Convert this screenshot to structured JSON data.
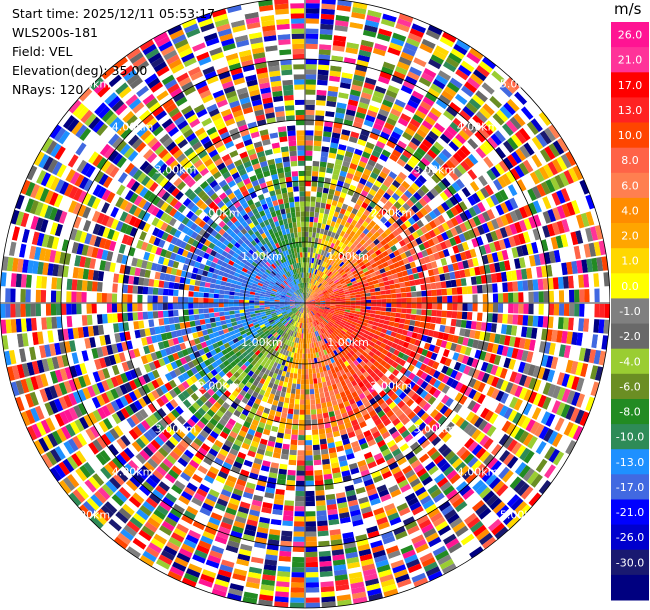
{
  "info": {
    "start_time": "Start time: 2025/12/11 05:53:17",
    "instrument": "WLS200s-181",
    "field": "Field: VEL",
    "elevation": "Elevation(deg): 35.00",
    "nrays": "NRays: 120"
  },
  "chart_data": {
    "type": "heatmap",
    "subtype": "polar-ppi",
    "field": "VEL",
    "nrays": 120,
    "max_range_km": 5.0,
    "range_rings_km": [
      1,
      2,
      3,
      4,
      5
    ],
    "range_ring_labels": [
      "1.00km",
      "2.00km",
      "3.00km",
      "4.00km",
      "5.00km"
    ],
    "colorbar": {
      "unit": "m/s",
      "ticks": [
        "26.0",
        "21.0",
        "17.0",
        "13.0",
        "10.0",
        "8.0",
        "6.0",
        "4.0",
        "2.0",
        "1.0",
        "0.0",
        "-1.0",
        "-2.0",
        "-4.0",
        "-6.0",
        "-8.0",
        "-10.0",
        "-13.0",
        "-17.0",
        "-21.0",
        "-26.0",
        "-30.0"
      ],
      "colors": [
        "#ff1493",
        "#ff3399",
        "#ff0000",
        "#ff2222",
        "#ff4500",
        "#ff6347",
        "#ff7f50",
        "#ff8c00",
        "#ffa500",
        "#ffd700",
        "#ffff00",
        "#808080",
        "#696969",
        "#9acd32",
        "#6b8e23",
        "#228b22",
        "#2e8b57",
        "#1e90ff",
        "#4169e1",
        "#0000ff",
        "#0000cd",
        "#191970",
        "#000080"
      ]
    }
  }
}
